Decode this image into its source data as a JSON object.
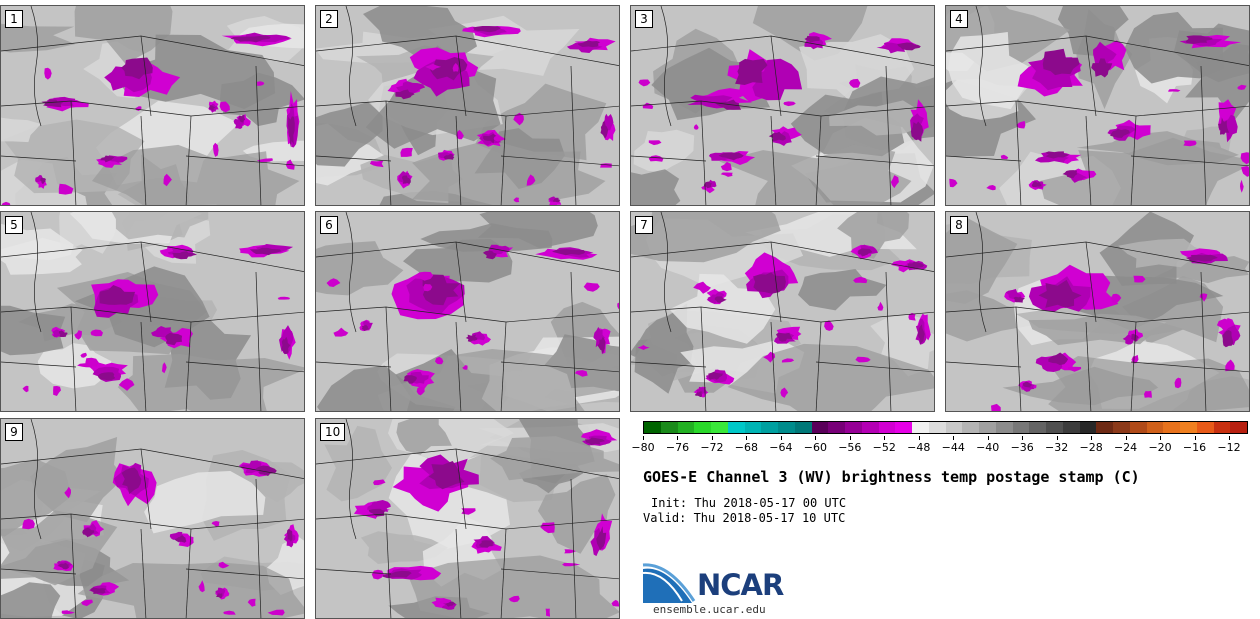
{
  "panels": [
    {
      "label": "1"
    },
    {
      "label": "2"
    },
    {
      "label": "3"
    },
    {
      "label": "4"
    },
    {
      "label": "5"
    },
    {
      "label": "6"
    },
    {
      "label": "7"
    },
    {
      "label": "8"
    },
    {
      "label": "9"
    },
    {
      "label": "10"
    }
  ],
  "colorbar": {
    "tick_labels": [
      "−80",
      "−76",
      "−72",
      "−68",
      "−64",
      "−60",
      "−56",
      "−52",
      "−48",
      "−44",
      "−40",
      "−36",
      "−32",
      "−28",
      "−24",
      "−20",
      "−16",
      "−12"
    ],
    "colors": [
      "#006400",
      "#1a8a1a",
      "#22b022",
      "#2ad82a",
      "#3ae83a",
      "#00c8c8",
      "#00b4b4",
      "#00a0a0",
      "#008c8c",
      "#007878",
      "#5a005a",
      "#780078",
      "#960096",
      "#b400b4",
      "#d200d2",
      "#e600e6",
      "#f0f0f0",
      "#dcdcdc",
      "#c8c8c8",
      "#b4b4b4",
      "#a0a0a0",
      "#8c8c8c",
      "#787878",
      "#646464",
      "#505050",
      "#3c3c3c",
      "#282828",
      "#6e2a14",
      "#8c3a1a",
      "#b04a18",
      "#d0601a",
      "#e8721c",
      "#f08020",
      "#e85a18",
      "#c83010",
      "#b82010"
    ]
  },
  "title": "GOES-E Channel 3 (WV) brightness temp postage stamp (C)",
  "init": "Init: Thu 2018-05-17 00 UTC",
  "valid": "Valid: Thu 2018-05-17 10 UTC",
  "logo": {
    "text": "NCAR",
    "url": "ensemble.ucar.edu"
  }
}
